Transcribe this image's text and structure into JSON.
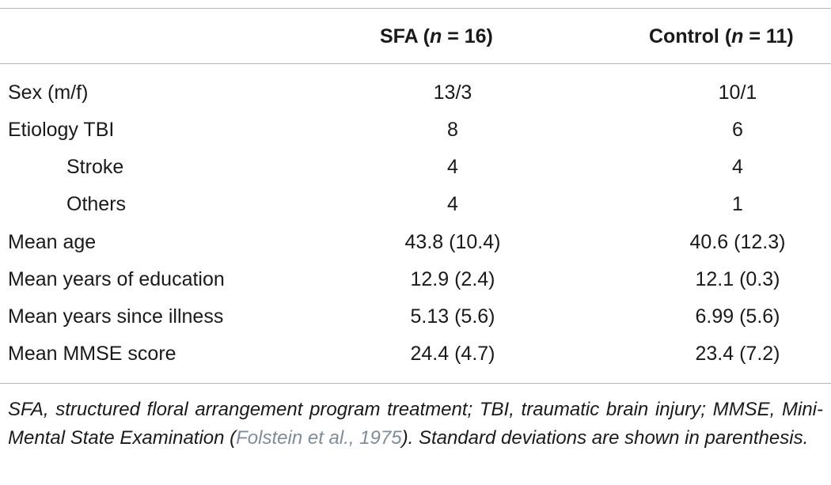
{
  "table": {
    "header": {
      "col1_prefix": "SFA (",
      "col1_n": "n",
      "col1_suffix": " = 16)",
      "col2_prefix": "Control (",
      "col2_n": "n",
      "col2_suffix": " = 11)"
    },
    "rows": [
      {
        "label": "Sex (m/f)",
        "sfa": "13/3",
        "control": "10/1"
      },
      {
        "label": "Etiology TBI",
        "sfa": "8",
        "control": "6"
      },
      {
        "label": "Stroke",
        "sfa": "4",
        "control": "4"
      },
      {
        "label": "Others",
        "sfa": "4",
        "control": "1"
      },
      {
        "label": "Mean age",
        "sfa": "43.8 (10.4)",
        "control": "40.6 (12.3)"
      },
      {
        "label": "Mean years of education",
        "sfa": "12.9 (2.4)",
        "control": "12.1 (0.3)"
      },
      {
        "label": "Mean years since illness",
        "sfa": "5.13 (5.6)",
        "control": "6.99 (5.6)"
      },
      {
        "label": "Mean MMSE score",
        "sfa": "24.4 (4.7)",
        "control": "23.4 (7.2)"
      }
    ]
  },
  "footnote": {
    "before": "SFA, structured floral arrangement program treatment; TBI, traumatic brain injury; MMSE, Mini-Mental State Examination (",
    "citation": "Folstein et al., 1975",
    "after": "). Standard deviations are shown in parenthesis."
  },
  "colors": {
    "text": "#1a1a1a",
    "rule": "#b7b7b7",
    "citation_link": "#7f8c99"
  }
}
